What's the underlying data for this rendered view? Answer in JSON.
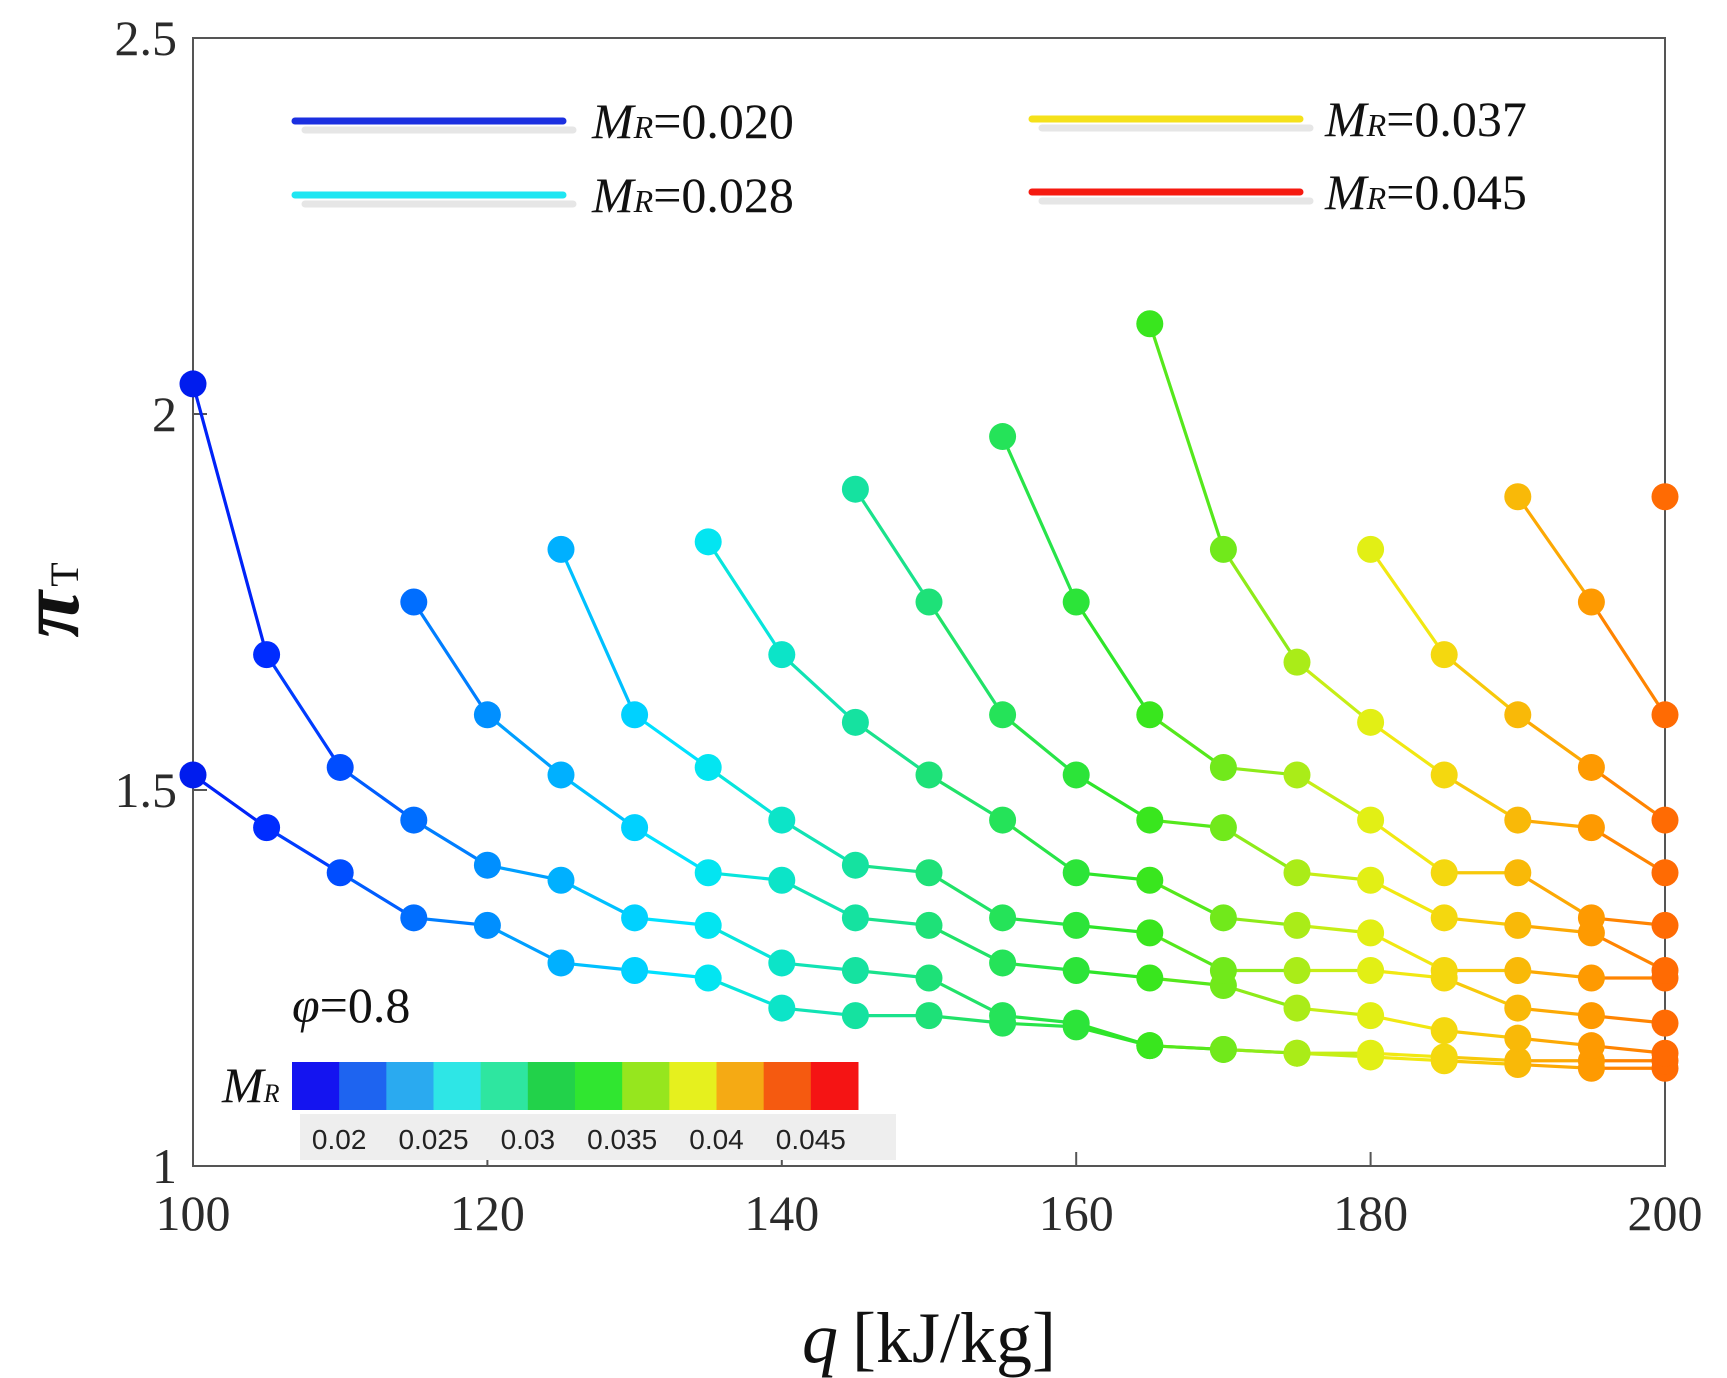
{
  "chart_data": {
    "type": "scatter",
    "xlabel": {
      "symbol": "q",
      "unit": "[kJ/kg]"
    },
    "ylabel": {
      "symbol": "π",
      "subscript": "T"
    },
    "xlim": [
      100,
      200
    ],
    "ylim": [
      1,
      2.5
    ],
    "xticks": [
      "100",
      "120",
      "140",
      "160",
      "180",
      "200"
    ],
    "yticks": [
      "1",
      "1.5",
      "2",
      "2.5"
    ],
    "grid": false,
    "legend_placement": "top",
    "legend": [
      {
        "symbol": "M",
        "subscript": "R",
        "value": "=0.020",
        "color": "#1b2fe0"
      },
      {
        "symbol": "M",
        "subscript": "R",
        "value": "=0.028",
        "color": "#1fe6f2"
      },
      {
        "symbol": "M",
        "subscript": "R",
        "value": "=0.037",
        "color": "#f5e11a"
      },
      {
        "symbol": "M",
        "subscript": "R",
        "value": "=0.045",
        "color": "#f51a10"
      }
    ],
    "annotation": {
      "symbol": "φ",
      "value": "=0.8"
    },
    "colorbar": {
      "label_symbol": "M",
      "label_subscript": "R",
      "range": [
        0.0175,
        0.0475
      ],
      "ticks": [
        "0.02",
        "0.025",
        "0.03",
        "0.035",
        "0.04",
        "0.045"
      ],
      "colors": [
        "#1414f0",
        "#1e64f0",
        "#2aaaf0",
        "#2ee6e6",
        "#2ee6a0",
        "#22d24a",
        "#30e630",
        "#96e61e",
        "#e6f01e",
        "#f5aa14",
        "#f55a10",
        "#f51414"
      ]
    },
    "series": [
      {
        "x": [
          100,
          105,
          110,
          115,
          120,
          125,
          130,
          135,
          140,
          145,
          150,
          155,
          160,
          165,
          170,
          175,
          180,
          185,
          190,
          195,
          200
        ],
        "y": [
          2.04,
          1.68,
          1.53,
          1.46,
          1.4,
          1.38,
          1.33,
          1.32,
          1.27,
          1.26,
          1.25,
          1.2,
          1.19,
          1.16,
          1.155,
          1.15,
          1.145,
          1.14,
          1.135,
          1.13,
          1.13
        ]
      },
      {
        "x": [
          100,
          105,
          110,
          115,
          120,
          125,
          130,
          135,
          140,
          145,
          150,
          155,
          160,
          165,
          170,
          175,
          180,
          185,
          190,
          195,
          200
        ],
        "y": [
          1.52,
          1.45,
          1.39,
          1.33,
          1.32,
          1.27,
          1.26,
          1.25,
          1.21,
          1.2,
          1.2,
          1.19,
          1.185,
          1.16,
          1.155,
          1.15,
          1.15,
          1.145,
          1.14,
          1.14,
          1.14
        ]
      },
      {
        "x": [
          115,
          120,
          125,
          130,
          135,
          140,
          145,
          150,
          155,
          160,
          165,
          170,
          175,
          180,
          185,
          190,
          195,
          200
        ],
        "y": [
          1.75,
          1.6,
          1.52,
          1.45,
          1.39,
          1.38,
          1.33,
          1.32,
          1.27,
          1.26,
          1.25,
          1.24,
          1.21,
          1.2,
          1.18,
          1.17,
          1.16,
          1.15
        ]
      },
      {
        "x": [
          125,
          130,
          135,
          140,
          145,
          150,
          155,
          160,
          165,
          170,
          175,
          180,
          185,
          190,
          195,
          200
        ],
        "y": [
          1.82,
          1.6,
          1.53,
          1.46,
          1.4,
          1.39,
          1.33,
          1.32,
          1.31,
          1.26,
          1.26,
          1.26,
          1.25,
          1.21,
          1.2,
          1.19
        ]
      },
      {
        "x": [
          135,
          140,
          145,
          150,
          155,
          160,
          165,
          170,
          175,
          180,
          185,
          190,
          195,
          200
        ],
        "y": [
          1.83,
          1.68,
          1.59,
          1.52,
          1.46,
          1.39,
          1.38,
          1.33,
          1.32,
          1.31,
          1.26,
          1.26,
          1.25,
          1.25
        ]
      },
      {
        "x": [
          145,
          150,
          155,
          160,
          165,
          170,
          175,
          180,
          185,
          190,
          195,
          200
        ],
        "y": [
          1.9,
          1.75,
          1.6,
          1.52,
          1.46,
          1.45,
          1.39,
          1.38,
          1.33,
          1.32,
          1.31,
          1.26
        ]
      },
      {
        "x": [
          155,
          160,
          165,
          170,
          175,
          180,
          185,
          190,
          195,
          200
        ],
        "y": [
          1.97,
          1.75,
          1.6,
          1.53,
          1.52,
          1.46,
          1.39,
          1.39,
          1.33,
          1.32
        ]
      },
      {
        "x": [
          165,
          170,
          175,
          180,
          185,
          190,
          195,
          200
        ],
        "y": [
          2.12,
          1.82,
          1.67,
          1.59,
          1.52,
          1.46,
          1.45,
          1.39
        ]
      },
      {
        "x": [
          180,
          185,
          190,
          195,
          200
        ],
        "y": [
          1.82,
          1.68,
          1.6,
          1.53,
          1.46
        ]
      },
      {
        "x": [
          190,
          195,
          200
        ],
        "y": [
          1.89,
          1.75,
          1.6
        ]
      },
      {
        "x": [
          200
        ],
        "y": [
          1.89
        ]
      }
    ]
  }
}
